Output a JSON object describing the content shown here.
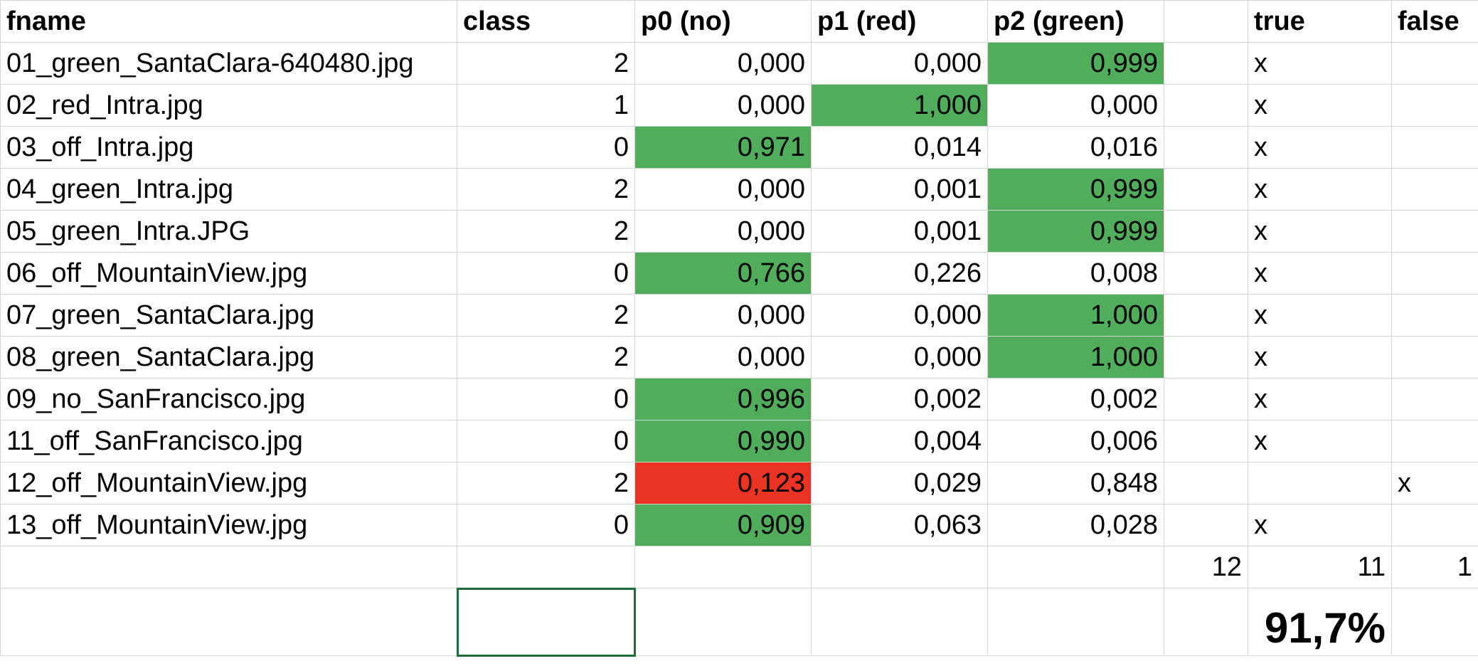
{
  "headers": [
    "fname",
    "class",
    "p0 (no)",
    "p1 (red)",
    "p2 (green)",
    "",
    "true",
    "false"
  ],
  "rows": [
    {
      "fname": "01_green_SantaClara-640480.jpg",
      "class": "2",
      "p0": "0,000",
      "p1": "0,000",
      "p2": "0,999",
      "true": "x",
      "false": ""
    },
    {
      "fname": "02_red_Intra.jpg",
      "class": "1",
      "p0": "0,000",
      "p1": "1,000",
      "p2": "0,000",
      "true": "x",
      "false": ""
    },
    {
      "fname": "03_off_Intra.jpg",
      "class": "0",
      "p0": "0,971",
      "p1": "0,014",
      "p2": "0,016",
      "true": "x",
      "false": ""
    },
    {
      "fname": "04_green_Intra.jpg",
      "class": "2",
      "p0": "0,000",
      "p1": "0,001",
      "p2": "0,999",
      "true": "x",
      "false": ""
    },
    {
      "fname": "05_green_Intra.JPG",
      "class": "2",
      "p0": "0,000",
      "p1": "0,001",
      "p2": "0,999",
      "true": "x",
      "false": ""
    },
    {
      "fname": "06_off_MountainView.jpg",
      "class": "0",
      "p0": "0,766",
      "p1": "0,226",
      "p2": "0,008",
      "true": "x",
      "false": ""
    },
    {
      "fname": "07_green_SantaClara.jpg",
      "class": "2",
      "p0": "0,000",
      "p1": "0,000",
      "p2": "1,000",
      "true": "x",
      "false": ""
    },
    {
      "fname": "08_green_SantaClara.jpg",
      "class": "2",
      "p0": "0,000",
      "p1": "0,000",
      "p2": "1,000",
      "true": "x",
      "false": ""
    },
    {
      "fname": "09_no_SanFrancisco.jpg",
      "class": "0",
      "p0": "0,996",
      "p1": "0,002",
      "p2": "0,002",
      "true": "x",
      "false": ""
    },
    {
      "fname": "11_off_SanFrancisco.jpg",
      "class": "0",
      "p0": "0,990",
      "p1": "0,004",
      "p2": "0,006",
      "true": "x",
      "false": ""
    },
    {
      "fname": "12_off_MountainView.jpg",
      "class": "2",
      "p0": "0,123",
      "p1": "0,029",
      "p2": "0,848",
      "true": "",
      "false": "x"
    },
    {
      "fname": "13_off_MountainView.jpg",
      "class": "0",
      "p0": "0,909",
      "p1": "0,063",
      "p2": "0,028",
      "true": "x",
      "false": ""
    }
  ],
  "highlights": [
    {
      "row": 0,
      "col": "p2",
      "color": "#4fad5b"
    },
    {
      "row": 1,
      "col": "p1",
      "color": "#4fad5b"
    },
    {
      "row": 2,
      "col": "p0",
      "color": "#4fad5b"
    },
    {
      "row": 3,
      "col": "p2",
      "color": "#4fad5b"
    },
    {
      "row": 4,
      "col": "p2",
      "color": "#4fad5b"
    },
    {
      "row": 5,
      "col": "p0",
      "color": "#4fad5b"
    },
    {
      "row": 6,
      "col": "p2",
      "color": "#4fad5b"
    },
    {
      "row": 7,
      "col": "p2",
      "color": "#4fad5b"
    },
    {
      "row": 8,
      "col": "p0",
      "color": "#4fad5b"
    },
    {
      "row": 9,
      "col": "p0",
      "color": "#4fad5b"
    },
    {
      "row": 10,
      "col": "p0",
      "color": "#ea3323"
    },
    {
      "row": 11,
      "col": "p0",
      "color": "#4fad5b"
    }
  ],
  "totals": {
    "total": "12",
    "true": "11",
    "false": "1"
  },
  "accuracy": "91,7%"
}
